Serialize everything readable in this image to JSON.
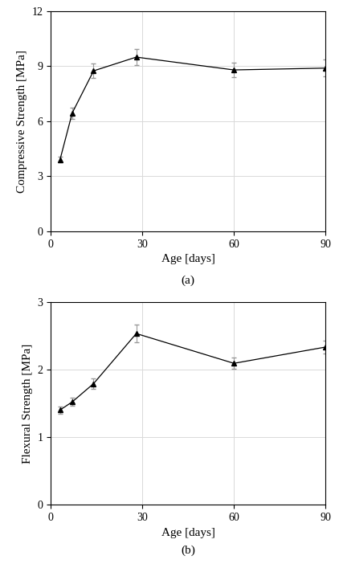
{
  "chart_data": [
    {
      "type": "line",
      "title": "(a)",
      "x_label": "Age [days]",
      "y_label": "Compressive Strength [MPa]",
      "x": [
        3,
        7,
        14,
        28,
        60,
        90
      ],
      "values": [
        3.9,
        6.45,
        8.75,
        9.5,
        8.8,
        8.9
      ],
      "error": [
        0.15,
        0.3,
        0.4,
        0.45,
        0.4,
        0.45
      ],
      "color": "#000000",
      "marker": "triangle",
      "line_style": "solid",
      "xlim": [
        0,
        90
      ],
      "xticks": [
        0,
        30,
        60,
        90
      ],
      "ylim": [
        0,
        12
      ],
      "yticks": [
        0,
        3,
        6,
        9,
        12
      ],
      "grid": true
    },
    {
      "type": "line",
      "title": "(b)",
      "x_label": "Age [days]",
      "y_label": "Flexural Strength [MPa]",
      "x": [
        3,
        7,
        14,
        28,
        60,
        90
      ],
      "values": [
        1.4,
        1.52,
        1.79,
        2.53,
        2.09,
        2.33
      ],
      "error": [
        0.05,
        0.06,
        0.08,
        0.13,
        0.08,
        0.09
      ],
      "color": "#000000",
      "marker": "triangle",
      "line_style": "solid",
      "xlim": [
        0,
        90
      ],
      "xticks": [
        0,
        30,
        60,
        90
      ],
      "ylim": [
        0,
        3
      ],
      "yticks": [
        0,
        1,
        2,
        3
      ],
      "grid": true
    }
  ]
}
